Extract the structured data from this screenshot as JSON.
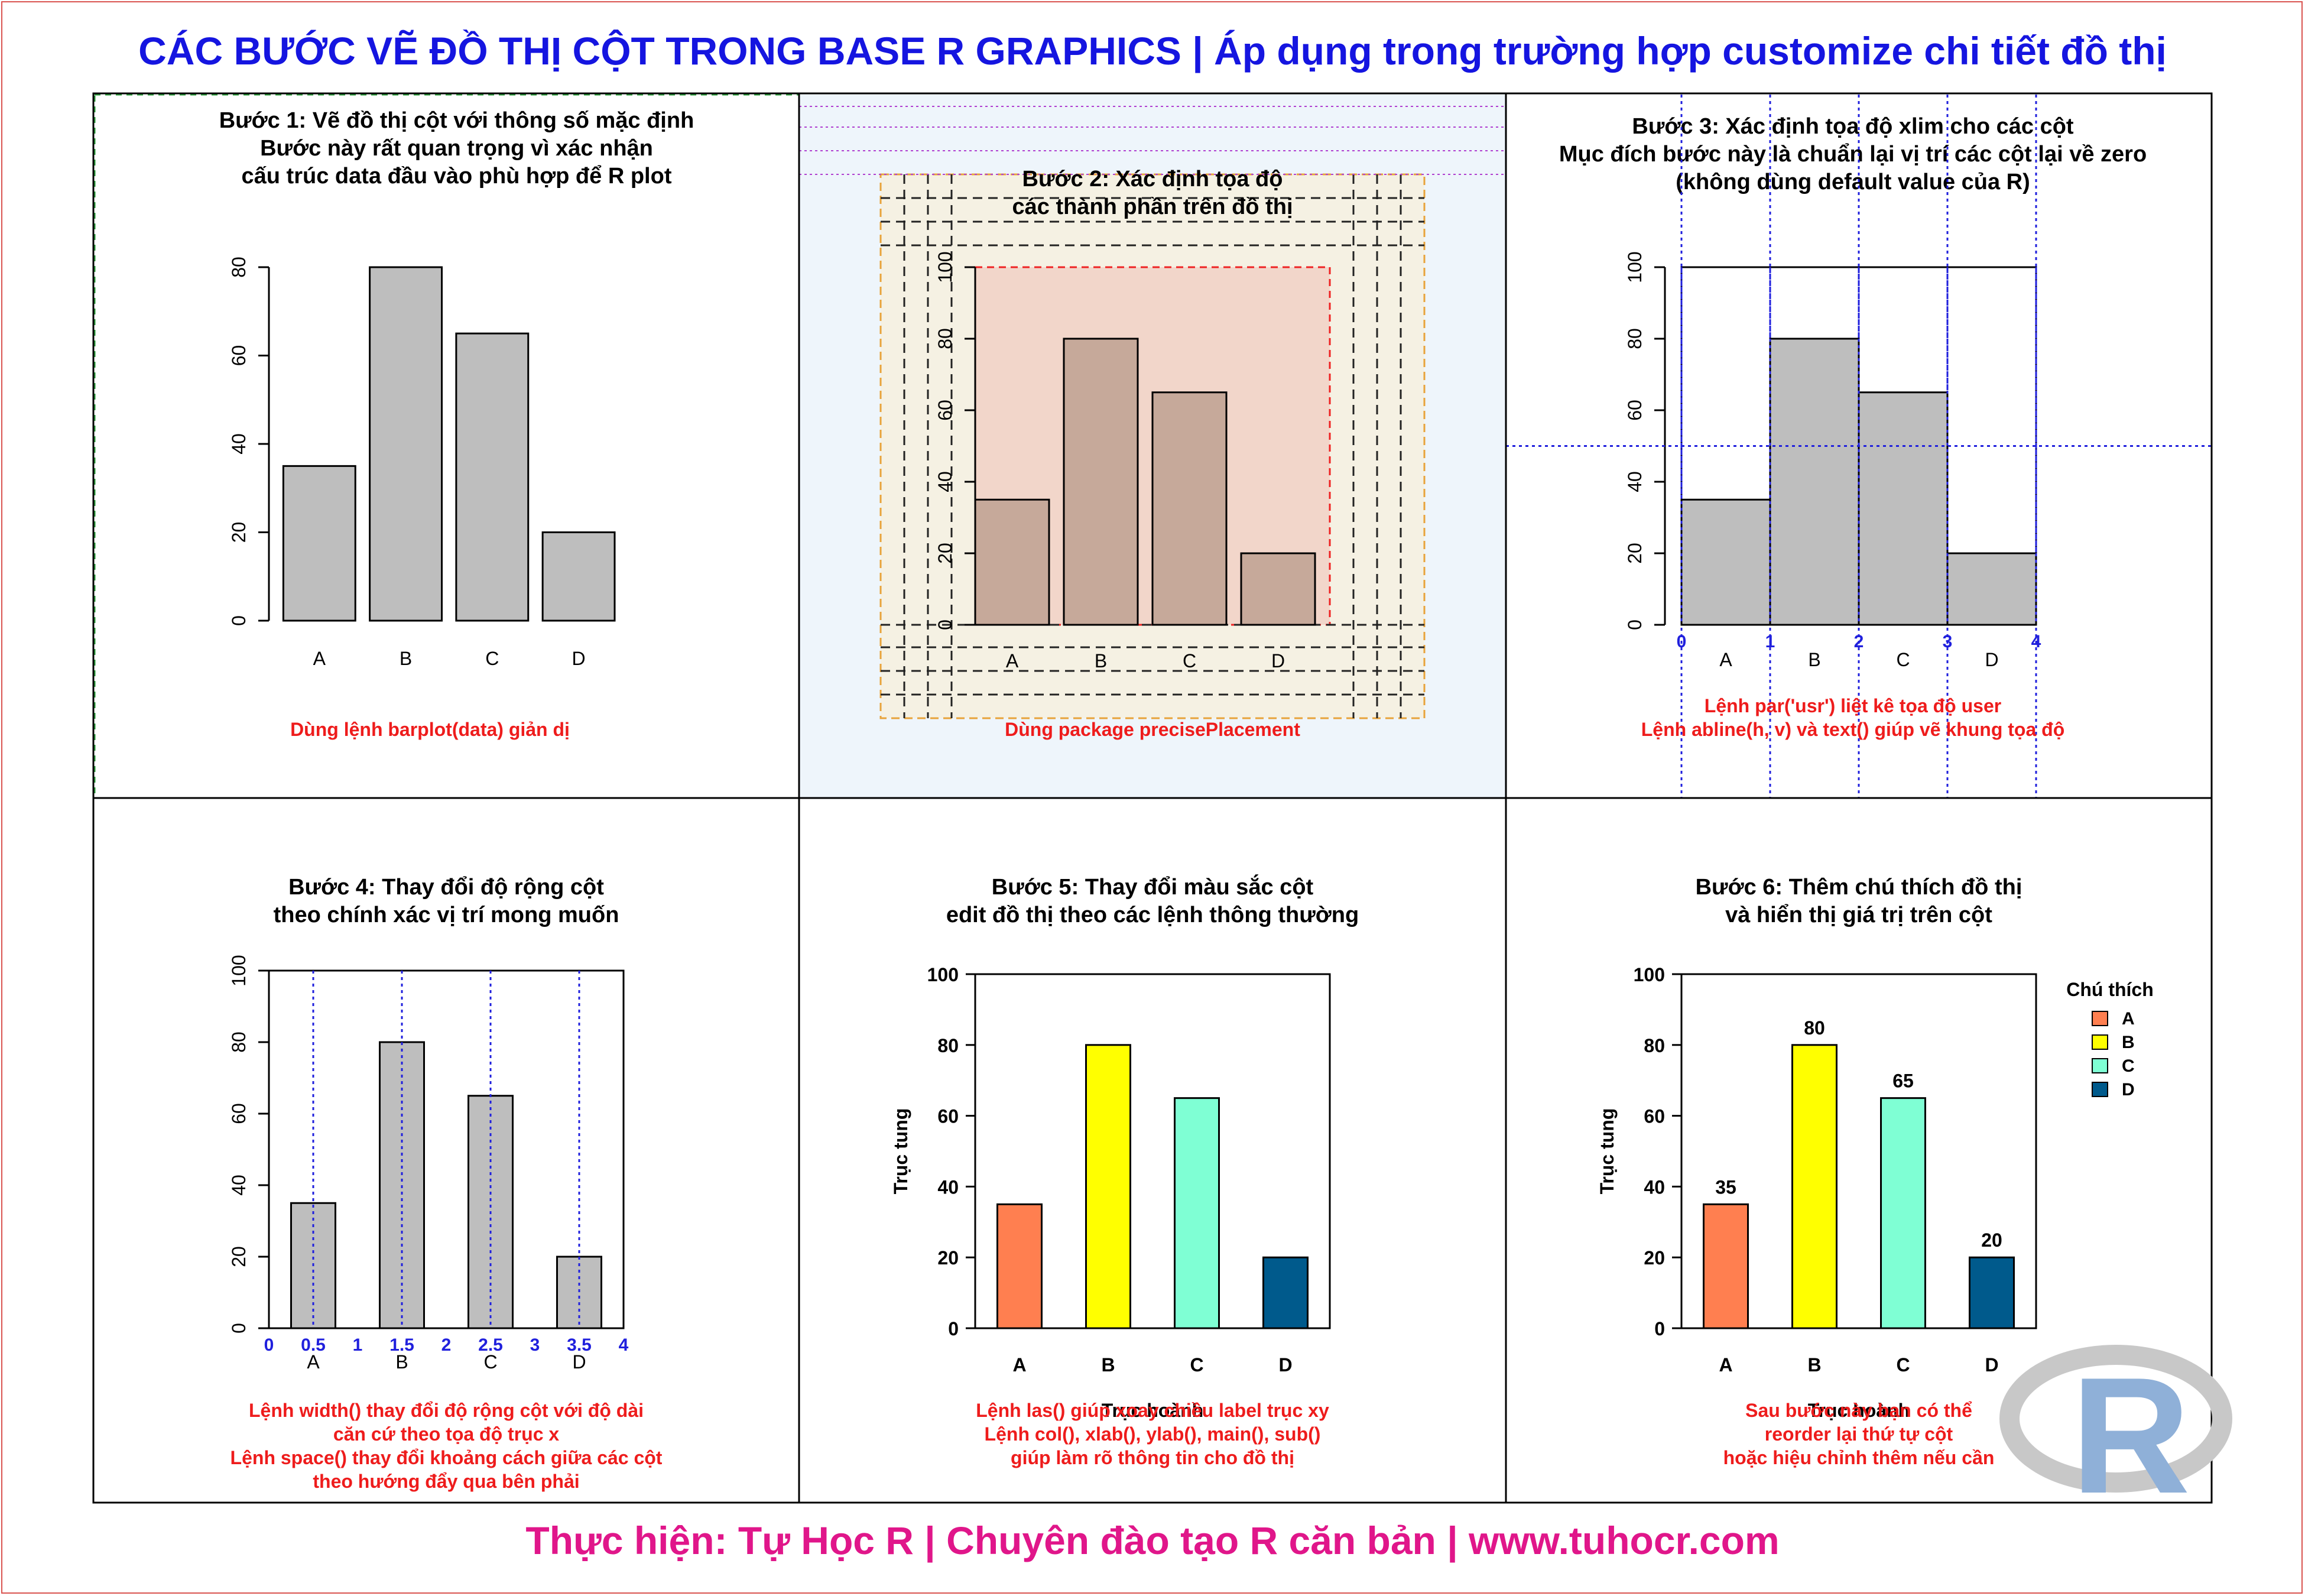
{
  "title": "CÁC BƯỚC VẼ ĐỒ THỊ CỘT TRONG BASE R GRAPHICS | Áp dụng trong trường hợp customize chi tiết đồ thị",
  "footer": "Thực hiện: Tự Học R | Chuyên đào tạo R căn bản | www.tuhocr.com",
  "colors": {
    "title": "#1515e0",
    "footer": "#e0168a",
    "note": "#ee1c1c",
    "guide": "#2020dd",
    "bar_gray": "#bebebe"
  },
  "logo_text": "R",
  "chart_data": [
    {
      "panel": 1,
      "type": "bar",
      "title_lines": [
        "Bước 1: Vẽ đồ thị cột với thông số mặc định",
        "Bước này rất quan trọng vì xác nhận",
        "cấu trúc data đầu vào phù hợp để R plot"
      ],
      "categories": [
        "A",
        "B",
        "C",
        "D"
      ],
      "values": [
        35,
        80,
        65,
        20
      ],
      "yticks": [
        0,
        20,
        40,
        60,
        80
      ],
      "ylim": [
        0,
        80
      ],
      "note_lines": [
        "Dùng lệnh barplot(data) giản dị"
      ]
    },
    {
      "panel": 2,
      "type": "bar",
      "title_lines": [
        "Bước 2: Xác định tọa độ",
        "các thành phần trên đồ thị"
      ],
      "categories": [
        "A",
        "B",
        "C",
        "D"
      ],
      "values": [
        35,
        80,
        65,
        20
      ],
      "yticks": [
        0,
        20,
        40,
        60,
        80,
        100
      ],
      "ylim": [
        0,
        100
      ],
      "note_lines": [
        "Dùng package precisePlacement"
      ]
    },
    {
      "panel": 3,
      "type": "bar",
      "title_lines": [
        "Bước 3: Xác định tọa độ xlim cho các cột",
        "Mục đích bước này là chuẩn lại vị trí các cột lại về zero",
        "(không dùng default value của R)"
      ],
      "categories": [
        "A",
        "B",
        "C",
        "D"
      ],
      "values": [
        35,
        80,
        65,
        20
      ],
      "yticks": [
        0,
        20,
        40,
        60,
        80,
        100
      ],
      "ylim": [
        0,
        100
      ],
      "xlim": [
        0,
        4
      ],
      "x_guides": [
        "0",
        "1",
        "2",
        "3",
        "4"
      ],
      "note_lines": [
        "Lệnh par('usr') liệt kê tọa độ user",
        "Lệnh abline(h, v) và text() giúp vẽ khung tọa độ"
      ]
    },
    {
      "panel": 4,
      "type": "bar",
      "title_lines": [
        "Bước 4: Thay đổi độ rộng cột",
        "theo chính xác vị trí mong muốn"
      ],
      "categories": [
        "A",
        "B",
        "C",
        "D"
      ],
      "values": [
        35,
        80,
        65,
        20
      ],
      "yticks": [
        0,
        20,
        40,
        60,
        80,
        100
      ],
      "ylim": [
        0,
        100
      ],
      "xlim": [
        0,
        4
      ],
      "x_guides": [
        "0",
        "0.5",
        "1",
        "1.5",
        "2",
        "2.5",
        "3",
        "3.5",
        "4"
      ],
      "note_lines": [
        "Lệnh width() thay đổi độ rộng cột với độ dài",
        "căn cứ theo tọa độ trục x",
        "Lệnh space() thay đổi khoảng cách giữa các cột",
        "theo hướng đẩy qua bên phải"
      ]
    },
    {
      "panel": 5,
      "type": "bar",
      "title_lines": [
        "Bước 5: Thay đổi màu sắc cột",
        "edit đồ thị theo các lệnh thông thường"
      ],
      "categories": [
        "A",
        "B",
        "C",
        "D"
      ],
      "values": [
        35,
        80,
        65,
        20
      ],
      "colors": [
        "#ff7f50",
        "#ffff00",
        "#7fffd4",
        "#005a8c"
      ],
      "yticks": [
        0,
        20,
        40,
        60,
        80,
        100
      ],
      "ylim": [
        0,
        100
      ],
      "xlabel": "Trục hoành",
      "ylabel": "Trục tung",
      "note_lines": [
        "Lệnh las() giúp xoay chiều label trục xy",
        "Lệnh col(), xlab(), ylab(), main(), sub()",
        "giúp làm rõ thông tin cho đồ thị"
      ]
    },
    {
      "panel": 6,
      "type": "bar",
      "title_lines": [
        "Bước 6: Thêm chú thích đồ thị",
        "và hiển thị giá trị trên cột"
      ],
      "categories": [
        "A",
        "B",
        "C",
        "D"
      ],
      "values": [
        35,
        80,
        65,
        20
      ],
      "colors": [
        "#ff7f50",
        "#ffff00",
        "#7fffd4",
        "#005a8c"
      ],
      "yticks": [
        0,
        20,
        40,
        60,
        80,
        100
      ],
      "ylim": [
        0,
        100
      ],
      "xlabel": "Trục hoành",
      "ylabel": "Trục tung",
      "data_labels": [
        "35",
        "80",
        "65",
        "20"
      ],
      "legend": {
        "title": "Chú thích",
        "items": [
          "A",
          "B",
          "C",
          "D"
        ],
        "position": "right"
      },
      "note_lines": [
        "Sau bước này bạn có thể",
        "reorder lại thứ tự cột",
        "hoặc hiệu chỉnh thêm nếu cần"
      ]
    }
  ]
}
